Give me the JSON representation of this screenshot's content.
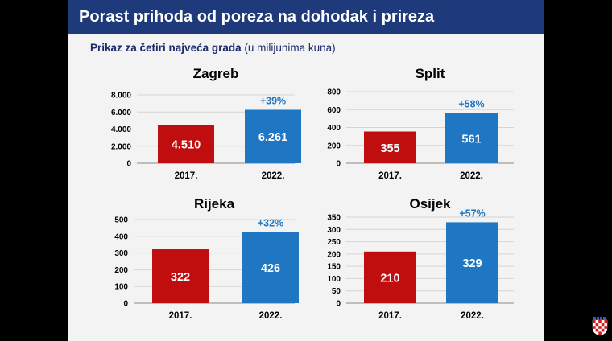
{
  "title": "Porast prihoda od poreza na dohodak i prireza",
  "subtitle_bold": "Prikaz za četiri najveća grada",
  "subtitle_normal": " (u milijunima kuna)",
  "colors": {
    "bar_2017": "#c00d0d",
    "bar_2022": "#1f77c4",
    "pct": "#1f77c4"
  },
  "chart_data": [
    {
      "type": "bar",
      "title": "Zagreb",
      "categories": [
        "2017.",
        "2022."
      ],
      "values": [
        4510,
        6261
      ],
      "value_labels": [
        "4.510",
        "6.261"
      ],
      "annotation": "+39%",
      "yticks": [
        "0",
        "2.000",
        "4.000",
        "6.000",
        "8.000"
      ],
      "tick_values": [
        0,
        2000,
        4000,
        6000,
        8000
      ],
      "ylim": [
        0,
        8000
      ]
    },
    {
      "type": "bar",
      "title": "Split",
      "categories": [
        "2017.",
        "2022."
      ],
      "values": [
        355,
        561
      ],
      "value_labels": [
        "355",
        "561"
      ],
      "annotation": "+58%",
      "yticks": [
        "0",
        "200",
        "400",
        "600",
        "800"
      ],
      "tick_values": [
        0,
        200,
        400,
        600,
        800
      ],
      "ylim": [
        0,
        800
      ]
    },
    {
      "type": "bar",
      "title": "Rijeka",
      "categories": [
        "2017.",
        "2022."
      ],
      "values": [
        322,
        426
      ],
      "value_labels": [
        "322",
        "426"
      ],
      "annotation": "+32%",
      "yticks": [
        "0",
        "100",
        "200",
        "300",
        "400",
        "500"
      ],
      "tick_values": [
        0,
        100,
        200,
        300,
        400,
        500
      ],
      "ylim": [
        0,
        500
      ]
    },
    {
      "type": "bar",
      "title": "Osijek",
      "categories": [
        "2017.",
        "2022."
      ],
      "values": [
        210,
        329
      ],
      "value_labels": [
        "210",
        "329"
      ],
      "annotation": "+57%",
      "yticks": [
        "0",
        "50",
        "100",
        "150",
        "200",
        "250",
        "300",
        "350"
      ],
      "tick_values": [
        0,
        50,
        100,
        150,
        200,
        250,
        300,
        350
      ],
      "ylim": [
        0,
        350
      ]
    }
  ]
}
